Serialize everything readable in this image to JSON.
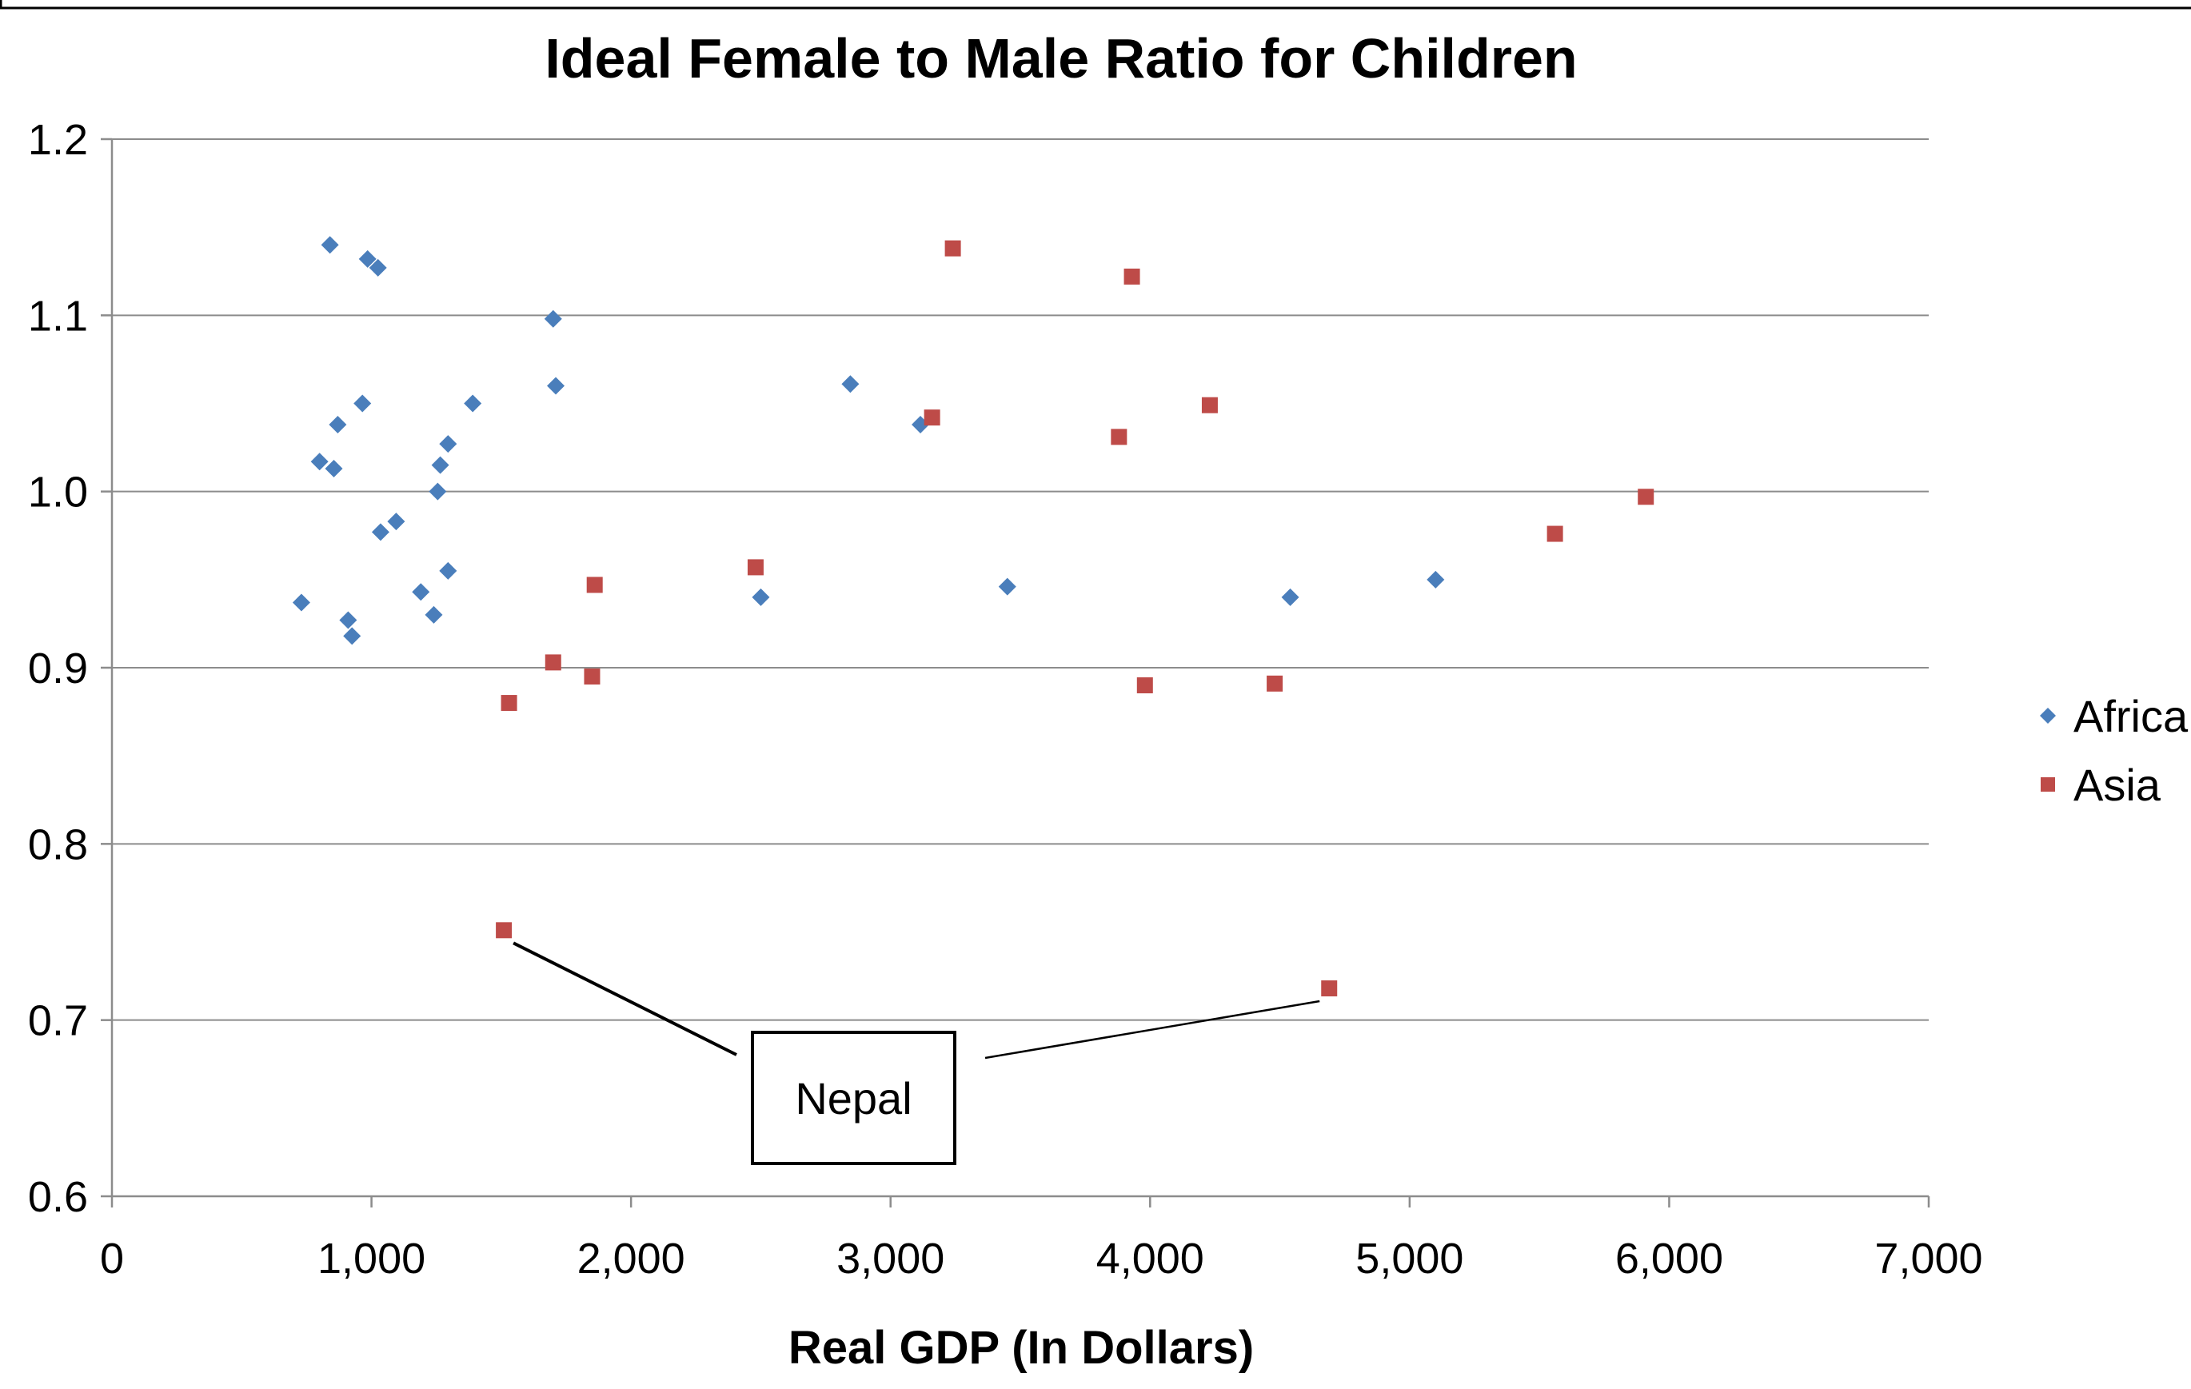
{
  "chart_data": {
    "type": "scatter",
    "title": "Ideal Female to Male Ratio for Children",
    "xlabel": "Real GDP (In Dollars)",
    "ylabel": "",
    "xlim": [
      0,
      7000
    ],
    "ylim": [
      0.6,
      1.2
    ],
    "x_ticks": [
      0,
      1000,
      2000,
      3000,
      4000,
      5000,
      6000,
      7000
    ],
    "x_tick_labels": [
      "0",
      "1,000",
      "2,000",
      "3,000",
      "4,000",
      "5,000",
      "6,000",
      "7,000"
    ],
    "y_ticks": [
      0.6,
      0.7,
      0.8,
      0.9,
      1.0,
      1.1,
      1.2
    ],
    "y_tick_labels": [
      "0.6",
      "0.7",
      "0.8",
      "0.9",
      "1.0",
      "1.1",
      "1.2"
    ],
    "grid": "horizontal",
    "legend_position": "right",
    "series": [
      {
        "name": "Africa",
        "marker": "diamond",
        "color": "#4a7ebb",
        "points": [
          [
            840,
            1.14
          ],
          [
            985,
            1.132
          ],
          [
            1025,
            1.127
          ],
          [
            1700,
            1.098
          ],
          [
            1710,
            1.06
          ],
          [
            1390,
            1.05
          ],
          [
            965,
            1.05
          ],
          [
            870,
            1.038
          ],
          [
            1295,
            1.027
          ],
          [
            800,
            1.017
          ],
          [
            855,
            1.013
          ],
          [
            1265,
            1.015
          ],
          [
            1255,
            1.0
          ],
          [
            1095,
            0.983
          ],
          [
            1035,
            0.977
          ],
          [
            1295,
            0.955
          ],
          [
            1190,
            0.943
          ],
          [
            1240,
            0.93
          ],
          [
            730,
            0.937
          ],
          [
            910,
            0.927
          ],
          [
            925,
            0.918
          ],
          [
            2845,
            1.061
          ],
          [
            3115,
            1.038
          ],
          [
            2500,
            0.94
          ],
          [
            3450,
            0.946
          ],
          [
            4540,
            0.94
          ],
          [
            5100,
            0.95
          ]
        ]
      },
      {
        "name": "Asia",
        "marker": "square",
        "color": "#be4b48",
        "points": [
          [
            3240,
            1.138
          ],
          [
            3930,
            1.122
          ],
          [
            3160,
            1.042
          ],
          [
            4230,
            1.049
          ],
          [
            3880,
            1.031
          ],
          [
            5910,
            0.997
          ],
          [
            5560,
            0.976
          ],
          [
            2480,
            0.957
          ],
          [
            1860,
            0.947
          ],
          [
            1700,
            0.903
          ],
          [
            1850,
            0.895
          ],
          [
            1530,
            0.88
          ],
          [
            3980,
            0.89
          ],
          [
            4480,
            0.891
          ],
          [
            1510,
            0.751
          ],
          [
            4690,
            0.718
          ]
        ]
      }
    ],
    "annotations": [
      {
        "text": "Nepal",
        "points": [
          [
            1510,
            0.751
          ],
          [
            4690,
            0.718
          ]
        ]
      }
    ]
  }
}
